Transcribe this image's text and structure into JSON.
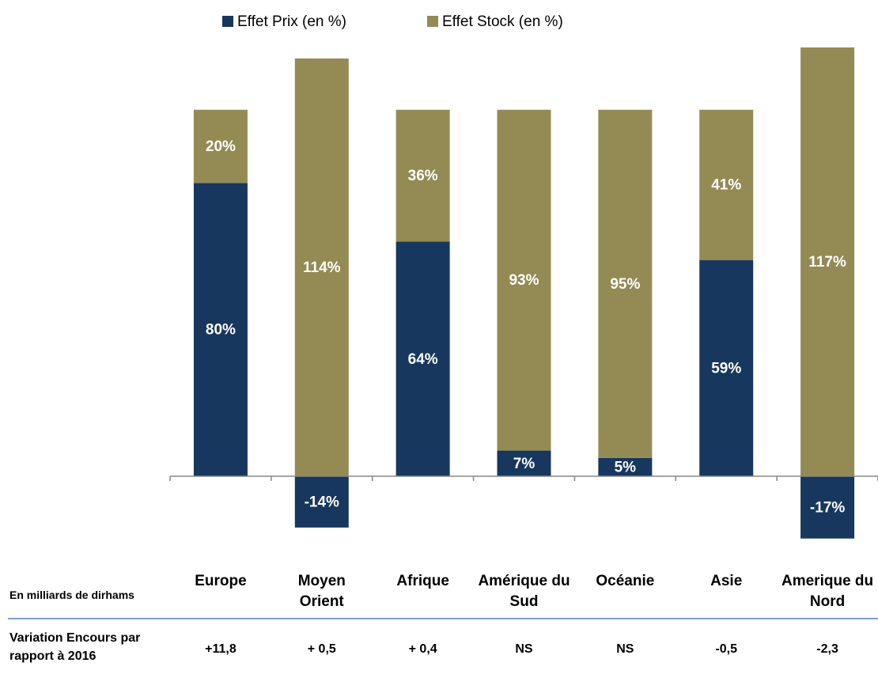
{
  "chart_data": {
    "type": "stacked_bar",
    "categories": [
      "Europe",
      "Moyen Orient",
      "Afrique",
      "Amérique du Sud",
      "Océanie",
      "Asie",
      "Amerique du Nord"
    ],
    "series": [
      {
        "name": "Effet Prix (en %)",
        "color": "#17375e",
        "values": [
          80,
          -14,
          64,
          7,
          5,
          59,
          -17
        ],
        "value_labels": [
          "80%",
          "-14%",
          "64%",
          "7%",
          "5%",
          "59%",
          "-17%"
        ]
      },
      {
        "name": "Effet Stock (en %)",
        "color": "#948a54",
        "values": [
          20,
          114,
          36,
          93,
          95,
          41,
          117
        ],
        "value_labels": [
          "20%",
          "114%",
          "36%",
          "93%",
          "95%",
          "41%",
          "117%"
        ]
      }
    ]
  },
  "table": {
    "header": "En milliards de dirhams",
    "row_label": "Variation Encours par rapport à 2016",
    "values": [
      "+11,8",
      "+ 0,5",
      "+ 0,4",
      "NS",
      "NS",
      "-0,5",
      "-2,3"
    ]
  }
}
